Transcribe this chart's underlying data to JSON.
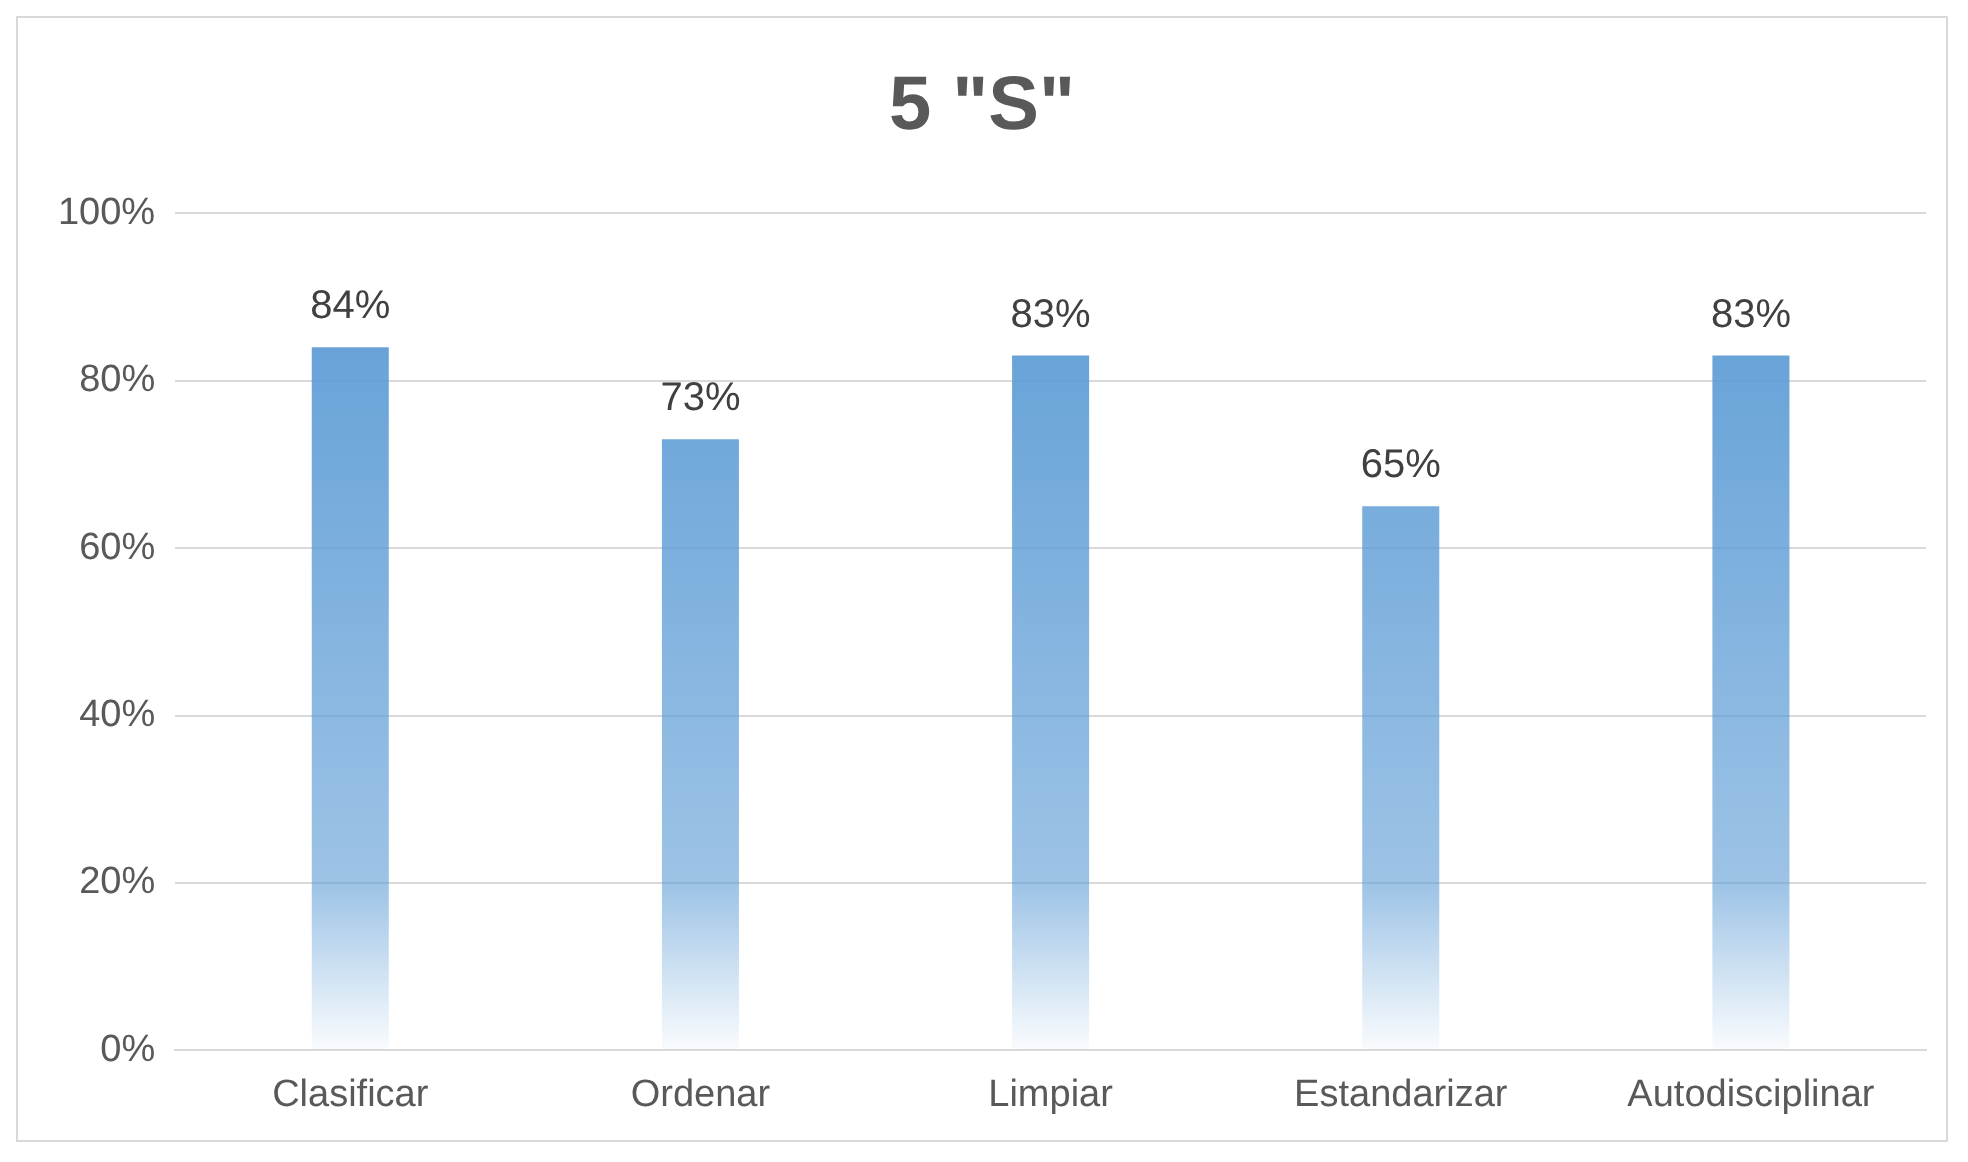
{
  "chart_data": {
    "type": "bar",
    "title": "5 \"S\"",
    "categories": [
      "Clasificar",
      "Ordenar",
      "Limpiar",
      "Estandarizar",
      "Autodisciplinar"
    ],
    "values": [
      84,
      73,
      83,
      65,
      83
    ],
    "color": "#5b9bd5",
    "value_labels": [
      "84%",
      "73%",
      "83%",
      "65%",
      "83%"
    ],
    "ylim": [
      0,
      100
    ],
    "yticks": [
      {
        "value": 0,
        "label": "0%"
      },
      {
        "value": 20,
        "label": "20%"
      },
      {
        "value": 40,
        "label": "40%"
      },
      {
        "value": 60,
        "label": "60%"
      },
      {
        "value": 80,
        "label": "80%"
      },
      {
        "value": 100,
        "label": "100%"
      }
    ],
    "grid": "y",
    "legend": false
  }
}
